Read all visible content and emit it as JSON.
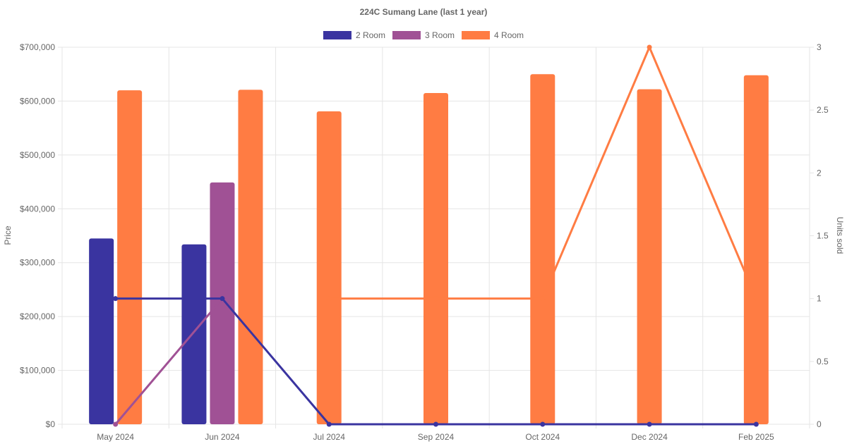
{
  "chart_data": {
    "type": "bar",
    "title": "224C Sumang Lane (last 1 year)",
    "categories": [
      "May 2024",
      "Jun 2024",
      "Jul 2024",
      "Sep 2024",
      "Oct 2024",
      "Dec 2024",
      "Feb 2025"
    ],
    "y_left": {
      "label": "Price",
      "range": [
        0,
        700000
      ],
      "ticks": [
        0,
        100000,
        200000,
        300000,
        400000,
        500000,
        600000,
        700000
      ],
      "tick_labels": [
        "$0",
        "$100,000",
        "$200,000",
        "$300,000",
        "$400,000",
        "$500,000",
        "$600,000",
        "$700,000"
      ]
    },
    "y_right": {
      "label": "Units sold",
      "range": [
        0,
        3
      ],
      "ticks": [
        0,
        0.5,
        1,
        1.5,
        2,
        2.5,
        3
      ],
      "tick_labels": [
        "0",
        "0.5",
        "1",
        "1.5",
        "2",
        "2.5",
        "3"
      ]
    },
    "grid": true,
    "legend_position": "top",
    "series": [
      {
        "name": "2 Room",
        "color": "#3a34a0",
        "price": [
          345000,
          334000,
          null,
          null,
          null,
          null,
          null
        ],
        "units": [
          1,
          1,
          0,
          0,
          0,
          0,
          0
        ]
      },
      {
        "name": "3 Room",
        "color": "#a05195",
        "price": [
          null,
          449000,
          null,
          null,
          null,
          null,
          null
        ],
        "units": [
          0,
          1,
          null,
          null,
          null,
          null,
          null
        ]
      },
      {
        "name": "4 Room",
        "color": "#ff7c43",
        "price": [
          620000,
          621000,
          581000,
          615000,
          650000,
          622000,
          648000
        ],
        "units": [
          null,
          null,
          1,
          1,
          1,
          3,
          1
        ]
      }
    ]
  }
}
